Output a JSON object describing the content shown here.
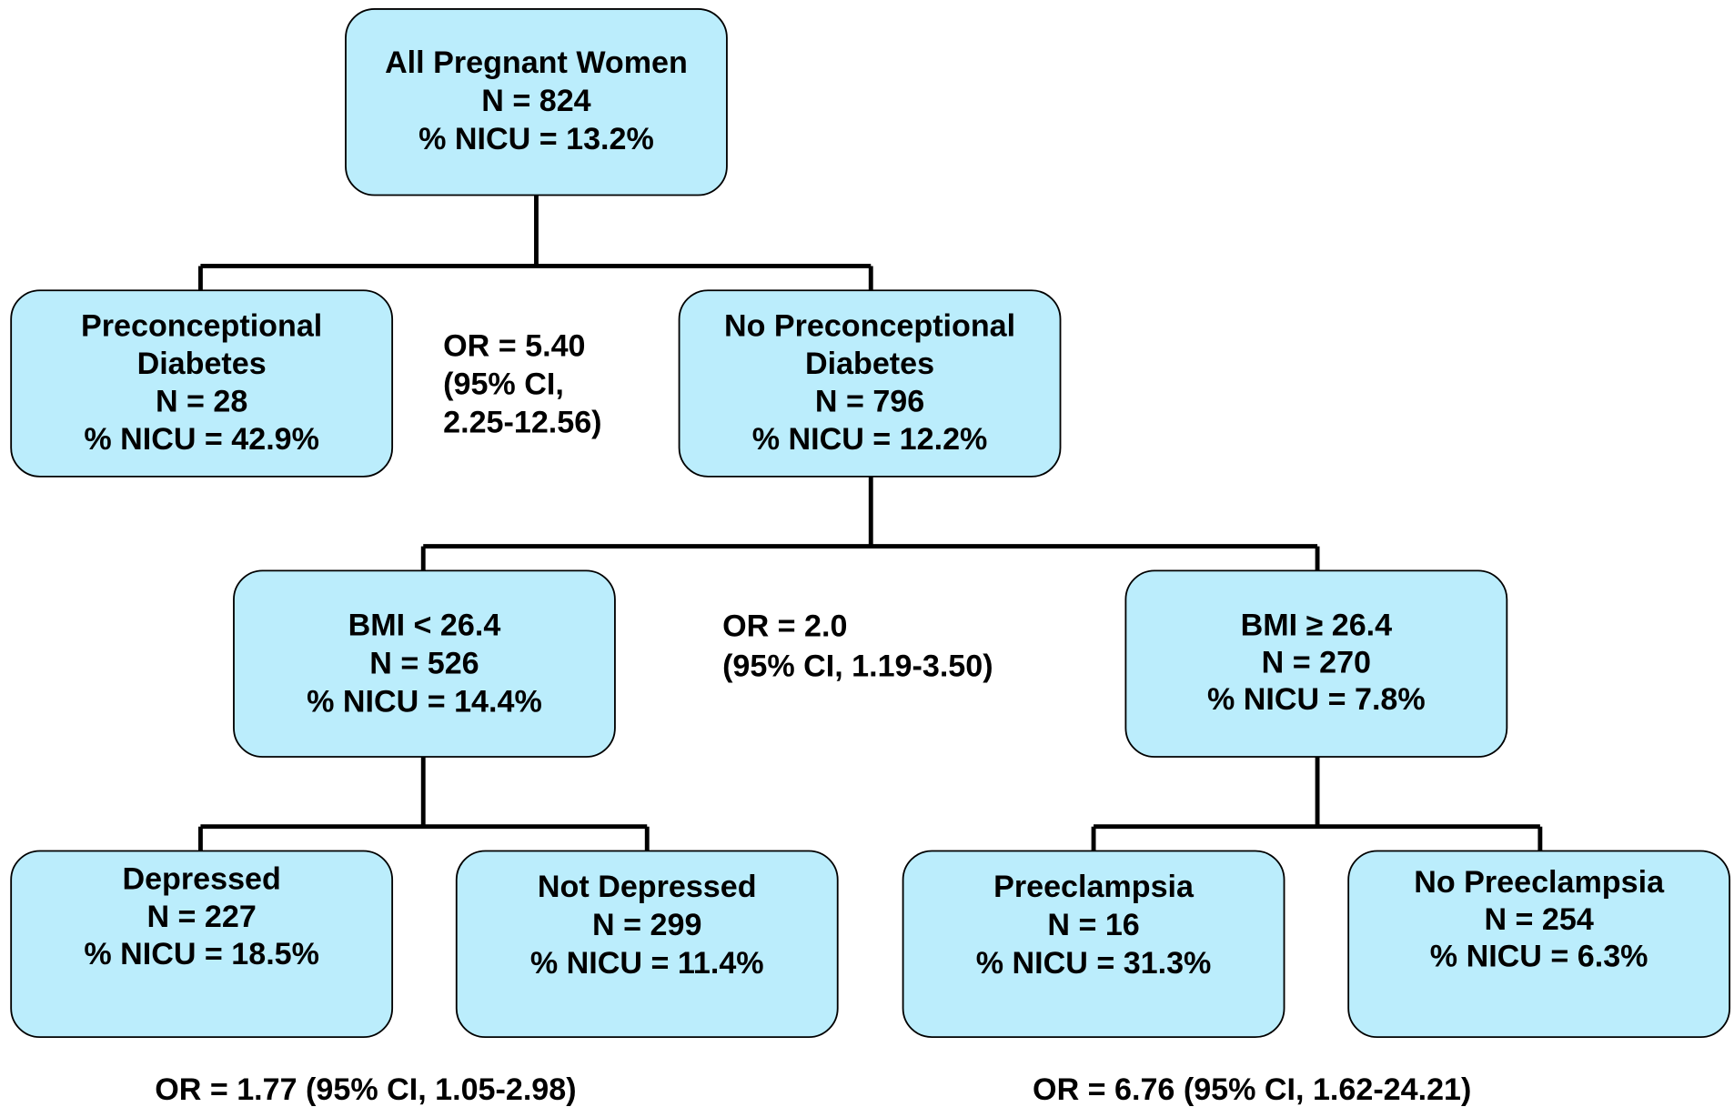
{
  "nodes": [
    {
      "lines": [
        "All Pregnant Women",
        "N = 824",
        "% NICU = 13.2%"
      ]
    },
    {
      "lines": [
        "Preconceptional",
        "Diabetes",
        "N = 28",
        "% NICU = 42.9%"
      ]
    },
    {
      "lines": [
        "No Preconceptional",
        "Diabetes",
        "N = 796",
        "% NICU = 12.2%"
      ]
    },
    {
      "lines": [
        "BMI < 26.4",
        "N = 526",
        "% NICU = 14.4%"
      ]
    },
    {
      "lines": [
        "BMI ≥ 26.4",
        "N = 270",
        "% NICU = 7.8%"
      ]
    },
    {
      "lines": [
        "Depressed",
        "N = 227",
        "% NICU = 18.5%"
      ]
    },
    {
      "lines": [
        "Not Depressed",
        "N = 299",
        "% NICU = 11.4%"
      ]
    },
    {
      "lines": [
        "Preeclampsia",
        "N = 16",
        "% NICU = 31.3%"
      ]
    },
    {
      "lines": [
        "No Preeclampsia",
        "N = 254",
        "% NICU = 6.3%"
      ]
    }
  ],
  "annotations": [
    {
      "lines": [
        "OR = 5.40",
        "(95% CI,",
        "2.25-12.56)"
      ]
    },
    {
      "lines": [
        "OR = 2.0",
        "(95% CI, 1.19-3.50)"
      ]
    },
    {
      "lines": [
        "OR = 1.77 (95% CI, 1.05-2.98)"
      ]
    },
    {
      "lines": [
        "OR = 6.76 (95% CI, 1.62-24.21)"
      ]
    }
  ]
}
